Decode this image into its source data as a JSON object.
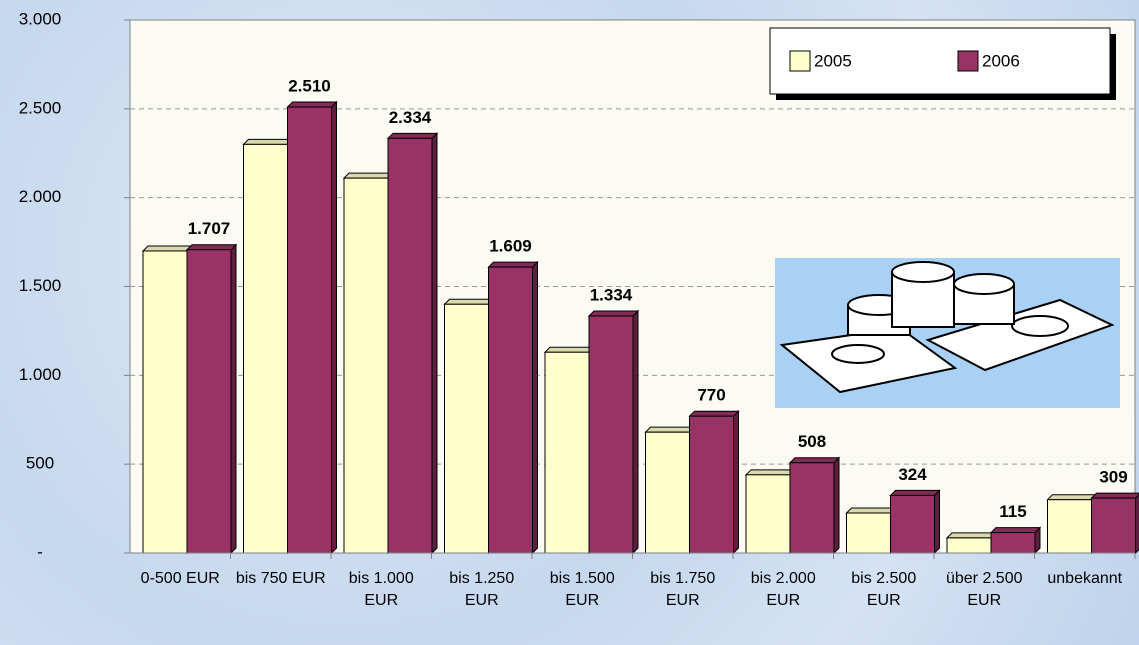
{
  "chart_data": {
    "type": "bar",
    "categories": [
      "0-500 EUR",
      "bis 750 EUR",
      "bis 1.000 EUR",
      "bis 1.250 EUR",
      "bis 1.500 EUR",
      "bis 1.750 EUR",
      "bis 2.000 EUR",
      "bis 2.500 EUR",
      "über 2.500 EUR",
      "unbekannt"
    ],
    "series": [
      {
        "name": "2005",
        "color": "#ffffcc",
        "values": [
          1700,
          2300,
          2110,
          1400,
          1130,
          680,
          440,
          225,
          85,
          300
        ]
      },
      {
        "name": "2006",
        "color": "#993366",
        "values": [
          1707,
          2510,
          2334,
          1609,
          1334,
          770,
          508,
          324,
          115,
          309
        ],
        "value_labels": [
          "1.707",
          "2.510",
          "2.334",
          "1.609",
          "1.334",
          "770",
          "508",
          "324",
          "115",
          "309"
        ]
      }
    ],
    "ylim": [
      0,
      3000
    ],
    "yticks": [
      {
        "value": 0,
        "label": "-"
      },
      500,
      {
        "value": 1000,
        "label": "1.000"
      },
      {
        "value": 1500,
        "label": "1.500"
      },
      {
        "value": 2000,
        "label": "2.000"
      },
      {
        "value": 2500,
        "label": "2.500"
      },
      {
        "value": 3000,
        "label": "3.000"
      }
    ],
    "grid": true
  }
}
